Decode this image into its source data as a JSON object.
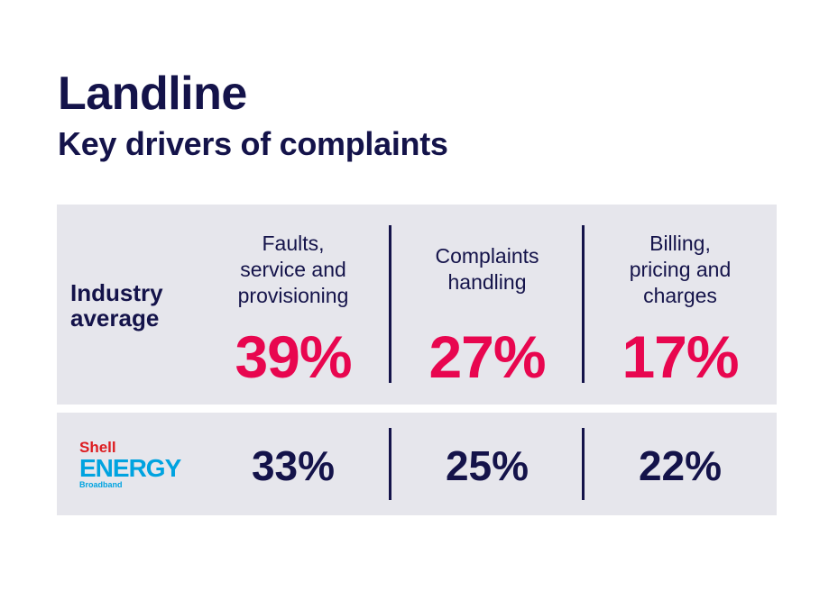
{
  "header": {
    "title": "Landline",
    "subtitle": "Key drivers of complaints"
  },
  "rows": {
    "industry_label_line1": "Industry",
    "industry_label_line2": "average"
  },
  "logo": {
    "line1": "Shell",
    "line2": "ENERGY",
    "line3": "Broadband"
  },
  "colors": {
    "navy": "#14134a",
    "accent": "#e8064f",
    "panel": "#e6e6ec",
    "logo_red": "#dd1d21",
    "logo_blue": "#00a3e0"
  },
  "chart_data": {
    "type": "table",
    "title": "Landline",
    "subtitle": "Key drivers of complaints",
    "categories": [
      [
        "Faults,",
        "service and",
        "provisioning"
      ],
      [
        "Complaints",
        "handling"
      ],
      [
        "Billing,",
        "pricing and",
        "charges"
      ]
    ],
    "series": [
      {
        "name": "Industry average",
        "values": [
          "39%",
          "27%",
          "17%"
        ]
      },
      {
        "name": "Shell ENERGY Broadband",
        "values": [
          "33%",
          "25%",
          "22%"
        ]
      }
    ]
  }
}
